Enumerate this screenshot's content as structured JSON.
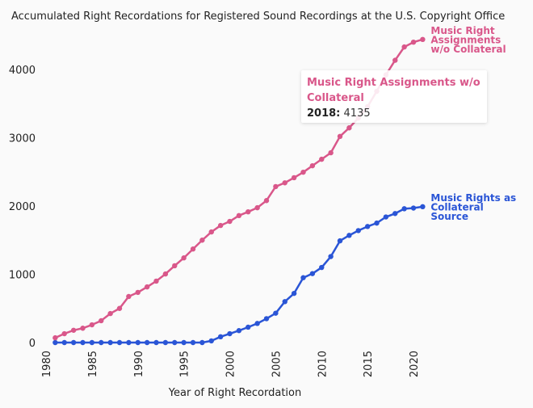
{
  "chart_data": {
    "type": "line",
    "title": "Accumulated Right Recordations for Registered Sound Recordings at the U.S. Copyright Office",
    "xlabel": "Year of Right Recordation",
    "ylabel": "",
    "xlim": [
      1980,
      2023
    ],
    "ylim": [
      0,
      4500
    ],
    "xticks": [
      "1980",
      "1985",
      "1990",
      "1995",
      "2000",
      "2005",
      "2010",
      "2015",
      "2020"
    ],
    "yticks": [
      "0",
      "1000",
      "2000",
      "3000",
      "4000"
    ],
    "grid": false,
    "legend": "direct labels at line ends",
    "x": [
      1981,
      1982,
      1983,
      1984,
      1985,
      1986,
      1987,
      1988,
      1989,
      1990,
      1991,
      1992,
      1993,
      1994,
      1995,
      1996,
      1997,
      1998,
      1999,
      2000,
      2001,
      2002,
      2003,
      2004,
      2005,
      2006,
      2007,
      2008,
      2009,
      2010,
      2011,
      2012,
      2013,
      2014,
      2015,
      2016,
      2017,
      2018,
      2019,
      2020,
      2021
    ],
    "series": [
      {
        "name": "Music Right Assignments w/o Collateral",
        "label_lines": [
          "Music Right",
          "Assignments",
          "w/o Collateral"
        ],
        "color": "#d9578a",
        "values": [
          70,
          130,
          180,
          210,
          260,
          320,
          425,
          500,
          675,
          735,
          815,
          900,
          1005,
          1125,
          1240,
          1370,
          1500,
          1620,
          1715,
          1775,
          1860,
          1915,
          1975,
          2080,
          2285,
          2340,
          2415,
          2495,
          2590,
          2685,
          2780,
          3020,
          3145,
          3290,
          3455,
          3680,
          3920,
          4135,
          4330,
          4400,
          4440
        ]
      },
      {
        "name": "Music Rights as Collateral Source",
        "label_lines": [
          "Music Rights as",
          "Collateral",
          "Source"
        ],
        "color": "#2a55d6",
        "values": [
          0,
          0,
          0,
          0,
          0,
          0,
          0,
          0,
          0,
          0,
          0,
          0,
          0,
          0,
          0,
          0,
          0,
          25,
          85,
          130,
          175,
          225,
          280,
          350,
          430,
          600,
          720,
          950,
          1010,
          1100,
          1260,
          1490,
          1570,
          1640,
          1700,
          1750,
          1840,
          1890,
          1960,
          1970,
          1990
        ]
      }
    ],
    "tooltip": {
      "series": "Music Right Assignments w/o Collateral",
      "year": "2018:",
      "value": "4135"
    }
  }
}
